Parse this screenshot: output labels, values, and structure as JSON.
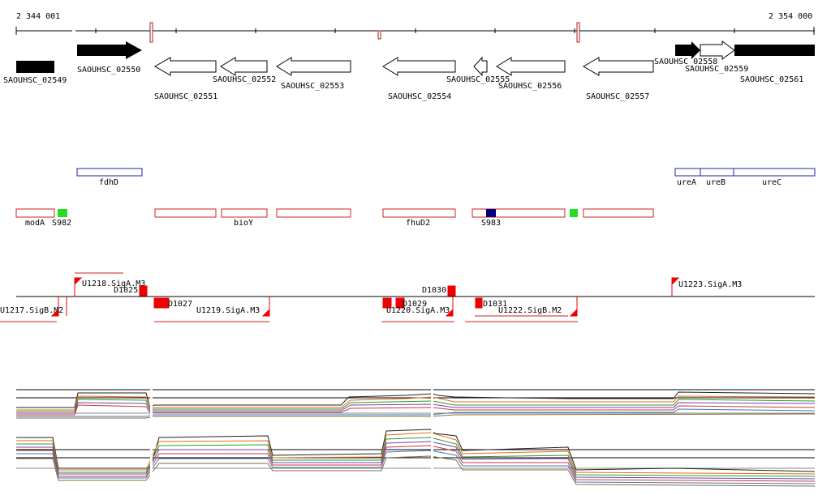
{
  "ruler": {
    "start": "2 344 001",
    "end": "2 354 000"
  },
  "colors": {
    "gene_fill": "#000000",
    "outline_red": "#cc2222",
    "outline_blue": "#2222aa",
    "green": "#22dd22",
    "navy": "#000080",
    "promoter": "#ee0000"
  },
  "genes": [
    {
      "id": "SAOUHSC_02549",
      "filled": true
    },
    {
      "id": "SAOUHSC_02550",
      "filled": true
    },
    {
      "id": "SAOUHSC_02551",
      "filled": false
    },
    {
      "id": "SAOUHSC_02552",
      "filled": false
    },
    {
      "id": "SAOUHSC_02553",
      "filled": false
    },
    {
      "id": "SAOUHSC_02554",
      "filled": false
    },
    {
      "id": "SAOUHSC_02555",
      "filled": false
    },
    {
      "id": "SAOUHSC_02556",
      "filled": false
    },
    {
      "id": "SAOUHSC_02557",
      "filled": false
    },
    {
      "id": "SAOUHSC_02558",
      "filled": true
    },
    {
      "id": "SAOUHSC_02559",
      "filled": false
    },
    {
      "id": "SAOUHSC_02561",
      "filled": true
    }
  ],
  "operons_blue": [
    "fdhD",
    "ureA",
    "ureB",
    "ureC"
  ],
  "operons_red": [
    "modA",
    "bioY",
    "fhuD2"
  ],
  "small_rnas": [
    "S982",
    "S983"
  ],
  "promoters_top": [
    "U1218.SigA.M3",
    "U1223.SigA.M3"
  ],
  "promoter_labels": [
    "D1025",
    "D1030",
    "D1027",
    "U1219.SigA.M3",
    "U1220.SigA.M3",
    "D1029",
    "D1031",
    "U1222.SigB.M2",
    "U1217.SigB.M2"
  ]
}
